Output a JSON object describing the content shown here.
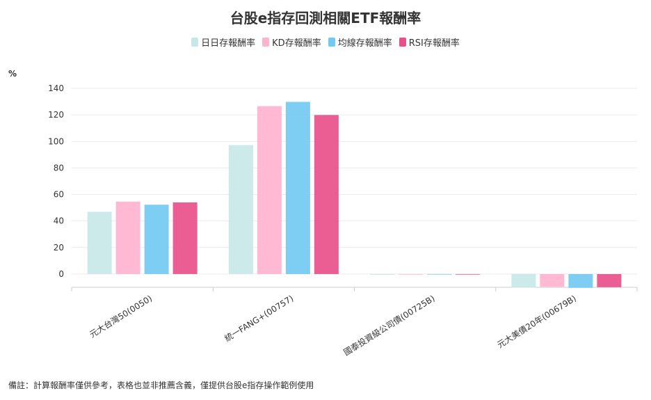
{
  "chart_data": {
    "type": "bar",
    "title": "台股e指存回測相關ETF報酬率",
    "ylabel": "%",
    "ylim": [
      -10,
      140
    ],
    "yticks": [
      0,
      20,
      40,
      60,
      80,
      100,
      120,
      140
    ],
    "grid": true,
    "legend_position": "top-center",
    "categories": [
      "元大台灣50(0050)",
      "統一FANG+(00757)",
      "國泰投資級公司債(00725B)",
      "元大美債20年(00679B)"
    ],
    "series": [
      {
        "name": "日日存報酬率",
        "color": "#c8e8e8",
        "values": [
          46.9,
          97.2,
          -0.6,
          -10.3
        ]
      },
      {
        "name": "KD存報酬率",
        "color": "#ffb3cf",
        "values": [
          54.6,
          126.6,
          -0.3,
          -9.6
        ]
      },
      {
        "name": "均線存報酬率",
        "color": "#73c9f2",
        "values": [
          52.3,
          129.8,
          -0.3,
          -10.4
        ]
      },
      {
        "name": "RSI存報酬率",
        "color": "#e8508a",
        "values": [
          54.0,
          119.9,
          -0.3,
          -9.9
        ]
      }
    ]
  },
  "footnote": "備註：計算報酬率僅供參考，表格也並非推薦含義，僅提供台股e指存操作範例使用"
}
